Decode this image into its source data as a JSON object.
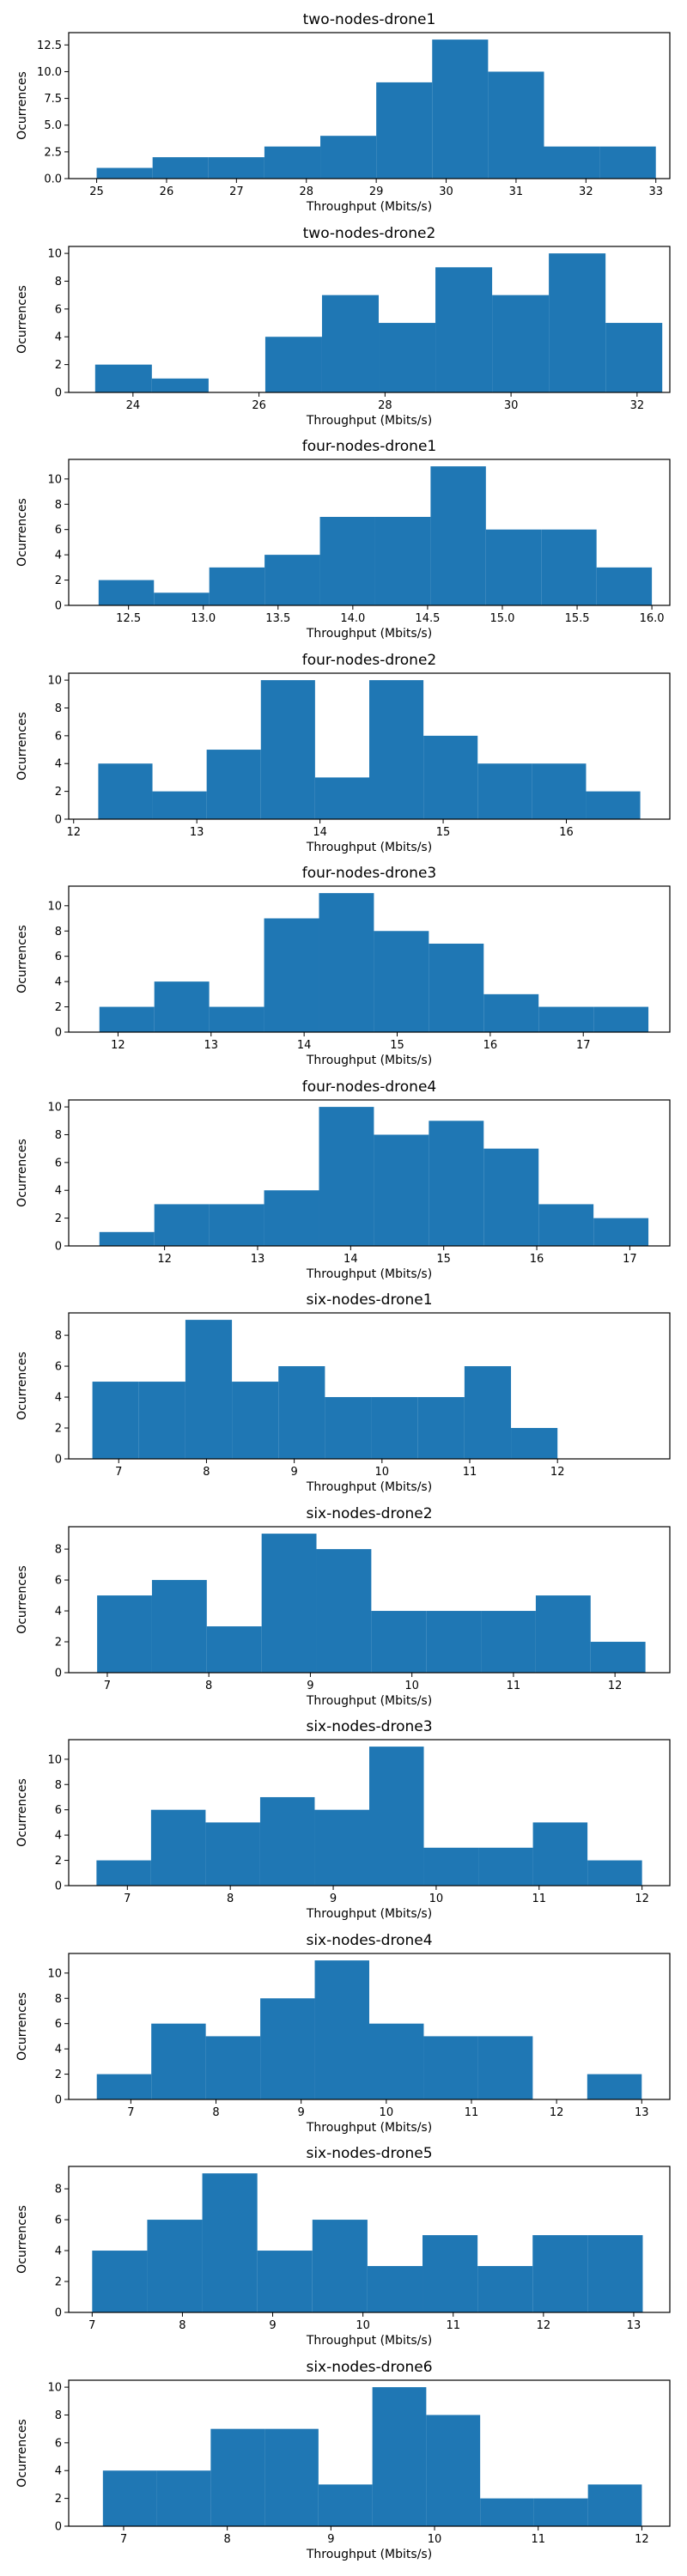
{
  "style": {
    "bar_color": "#1f77b4",
    "frame_color": "#000000",
    "background": "#ffffff"
  },
  "chart_data": [
    {
      "type": "bar",
      "title": "two-nodes-drone1",
      "xlabel": "Throughput (Mbits/s)",
      "ylabel": "Ocurrences",
      "xlim": [
        24.6,
        33.2
      ],
      "ylim": [
        0,
        13.65
      ],
      "xticks": [
        "25",
        "26",
        "27",
        "28",
        "29",
        "30",
        "31",
        "32",
        "33"
      ],
      "yticks": [
        "0.0",
        "2.5",
        "5.0",
        "7.5",
        "10.0",
        "12.5"
      ],
      "bin_edges": [
        25.0,
        25.8,
        26.6,
        27.4,
        28.2,
        29.0,
        29.8,
        30.6,
        31.4,
        32.2,
        33.0
      ],
      "values": [
        1,
        2,
        2,
        3,
        4,
        9,
        13,
        10,
        3,
        3
      ]
    },
    {
      "type": "bar",
      "title": "two-nodes-drone2",
      "xlabel": "Throughput (Mbits/s)",
      "ylabel": "Ocurrences",
      "xlim": [
        22.98,
        32.52
      ],
      "ylim": [
        0,
        10.5
      ],
      "xticks": [
        "24",
        "26",
        "28",
        "30",
        "32"
      ],
      "yticks": [
        "0",
        "2",
        "4",
        "6",
        "8",
        "10"
      ],
      "bin_edges": [
        23.4,
        24.3,
        25.2,
        26.1,
        27.0,
        27.9,
        28.8,
        29.7,
        30.6,
        31.5,
        32.4
      ],
      "values": [
        2,
        1,
        0,
        4,
        7,
        5,
        9,
        7,
        10,
        5
      ]
    },
    {
      "type": "bar",
      "title": "four-nodes-drone1",
      "xlabel": "Throughput (Mbits/s)",
      "ylabel": "Ocurrences",
      "xlim": [
        12.1,
        16.12
      ],
      "ylim": [
        0,
        11.55
      ],
      "xticks": [
        "12.5",
        "13.0",
        "13.5",
        "14.0",
        "14.5",
        "15.0",
        "15.5",
        "16.0"
      ],
      "yticks": [
        "0",
        "2",
        "4",
        "6",
        "8",
        "10"
      ],
      "bin_edges": [
        12.3,
        12.67,
        13.04,
        13.41,
        13.78,
        14.15,
        14.52,
        14.89,
        15.26,
        15.63,
        16.0
      ],
      "values": [
        2,
        1,
        3,
        4,
        7,
        7,
        11,
        6,
        6,
        3
      ]
    },
    {
      "type": "bar",
      "title": "four-nodes-drone2",
      "xlabel": "Throughput (Mbits/s)",
      "ylabel": "Ocurrences",
      "xlim": [
        11.96,
        16.84
      ],
      "ylim": [
        0,
        10.5
      ],
      "xticks": [
        "12",
        "13",
        "14",
        "15",
        "16"
      ],
      "yticks": [
        "0",
        "2",
        "4",
        "6",
        "8",
        "10"
      ],
      "bin_edges": [
        12.2,
        12.64,
        13.08,
        13.52,
        13.96,
        14.4,
        14.84,
        15.28,
        15.72,
        16.16,
        16.6
      ],
      "values": [
        4,
        2,
        5,
        10,
        3,
        10,
        6,
        4,
        4,
        2
      ]
    },
    {
      "type": "bar",
      "title": "four-nodes-drone3",
      "xlabel": "Throughput (Mbits/s)",
      "ylabel": "Ocurrences",
      "xlim": [
        11.47,
        17.93
      ],
      "ylim": [
        0,
        11.55
      ],
      "xticks": [
        "12",
        "13",
        "14",
        "15",
        "16",
        "17"
      ],
      "yticks": [
        "0",
        "2",
        "4",
        "6",
        "8",
        "10"
      ],
      "bin_edges": [
        11.8,
        12.39,
        12.98,
        13.57,
        14.16,
        14.75,
        15.34,
        15.93,
        16.52,
        17.11,
        17.7
      ],
      "values": [
        2,
        4,
        2,
        9,
        11,
        8,
        7,
        3,
        2,
        2
      ]
    },
    {
      "type": "bar",
      "title": "four-nodes-drone4",
      "xlabel": "Throughput (Mbits/s)",
      "ylabel": "Ocurrences",
      "xlim": [
        10.97,
        17.43
      ],
      "ylim": [
        0,
        10.5
      ],
      "xticks": [
        "12",
        "13",
        "14",
        "15",
        "16",
        "17"
      ],
      "yticks": [
        "0",
        "2",
        "4",
        "6",
        "8",
        "10"
      ],
      "bin_edges": [
        11.3,
        11.89,
        12.48,
        13.07,
        13.66,
        14.25,
        14.84,
        15.43,
        16.02,
        16.61,
        17.2
      ],
      "values": [
        1,
        3,
        3,
        4,
        10,
        8,
        9,
        7,
        3,
        2
      ]
    },
    {
      "type": "bar",
      "title": "six-nodes-drone1",
      "xlabel": "Throughput (Mbits/s)",
      "ylabel": "Ocurrences",
      "xlim": [
        6.43,
        13.28
      ],
      "ylim": [
        0,
        9.45
      ],
      "xticks": [
        "7",
        "8",
        "9",
        "10",
        "11",
        "12"
      ],
      "yticks": [
        "0",
        "2",
        "4",
        "6",
        "8"
      ],
      "bin_edges": [
        6.7,
        7.23,
        7.76,
        8.29,
        8.82,
        9.35,
        9.88,
        10.41,
        10.94,
        11.47,
        12.0
      ],
      "values": [
        5,
        5,
        9,
        5,
        6,
        4,
        4,
        4,
        6,
        2
      ]
    },
    {
      "type": "bar",
      "title": "six-nodes-drone2",
      "xlabel": "Throughput (Mbits/s)",
      "ylabel": "Ocurrences",
      "xlim": [
        6.62,
        12.54
      ],
      "ylim": [
        0,
        9.45
      ],
      "xticks": [
        "7",
        "8",
        "9",
        "10",
        "11",
        "12"
      ],
      "yticks": [
        "0",
        "2",
        "4",
        "6",
        "8"
      ],
      "bin_edges": [
        6.9,
        7.44,
        7.98,
        8.52,
        9.06,
        9.6,
        10.14,
        10.68,
        11.22,
        11.76,
        12.3
      ],
      "values": [
        5,
        6,
        3,
        9,
        8,
        4,
        4,
        4,
        5,
        2
      ]
    },
    {
      "type": "bar",
      "title": "six-nodes-drone3",
      "xlabel": "Throughput (Mbits/s)",
      "ylabel": "Ocurrences",
      "xlim": [
        6.43,
        12.27
      ],
      "ylim": [
        0,
        11.55
      ],
      "xticks": [
        "7",
        "8",
        "9",
        "10",
        "11",
        "12"
      ],
      "yticks": [
        "0",
        "2",
        "4",
        "6",
        "8",
        "10"
      ],
      "bin_edges": [
        6.7,
        7.23,
        7.76,
        8.29,
        8.82,
        9.35,
        9.88,
        10.41,
        10.94,
        11.47,
        12.0
      ],
      "values": [
        2,
        6,
        5,
        7,
        6,
        11,
        3,
        3,
        5,
        2
      ]
    },
    {
      "type": "bar",
      "title": "six-nodes-drone4",
      "xlabel": "Throughput (Mbits/s)",
      "ylabel": "Ocurrences",
      "xlim": [
        6.27,
        13.33
      ],
      "ylim": [
        0,
        11.55
      ],
      "xticks": [
        "7",
        "8",
        "9",
        "10",
        "11",
        "12",
        "13"
      ],
      "yticks": [
        "0",
        "2",
        "4",
        "6",
        "8",
        "10"
      ],
      "bin_edges": [
        6.6,
        7.24,
        7.88,
        8.52,
        9.16,
        9.8,
        10.44,
        11.08,
        11.72,
        12.36,
        13.0
      ],
      "values": [
        2,
        6,
        5,
        8,
        11,
        6,
        5,
        5,
        0,
        2
      ]
    },
    {
      "type": "bar",
      "title": "six-nodes-drone5",
      "xlabel": "Throughput (Mbits/s)",
      "ylabel": "Ocurrences",
      "xlim": [
        6.74,
        13.4
      ],
      "ylim": [
        0,
        9.45
      ],
      "xticks": [
        "7",
        "8",
        "9",
        "10",
        "11",
        "12",
        "13"
      ],
      "yticks": [
        "0",
        "2",
        "4",
        "6",
        "8"
      ],
      "bin_edges": [
        7.0,
        7.61,
        8.22,
        8.83,
        9.44,
        10.05,
        10.66,
        11.27,
        11.88,
        12.49,
        13.1
      ],
      "values": [
        4,
        6,
        9,
        4,
        6,
        3,
        5,
        3,
        5,
        5
      ]
    },
    {
      "type": "bar",
      "title": "six-nodes-drone6",
      "xlabel": "Throughput (Mbits/s)",
      "ylabel": "Ocurrences",
      "xlim": [
        6.47,
        12.27
      ],
      "ylim": [
        0,
        10.5
      ],
      "xticks": [
        "7",
        "8",
        "9",
        "10",
        "11",
        "12"
      ],
      "yticks": [
        "0",
        "2",
        "4",
        "6",
        "8",
        "10"
      ],
      "bin_edges": [
        6.8,
        7.32,
        7.84,
        8.36,
        8.88,
        9.4,
        9.92,
        10.44,
        10.96,
        11.48,
        12.0
      ],
      "values": [
        4,
        4,
        7,
        7,
        3,
        10,
        8,
        2,
        2,
        3
      ]
    }
  ]
}
